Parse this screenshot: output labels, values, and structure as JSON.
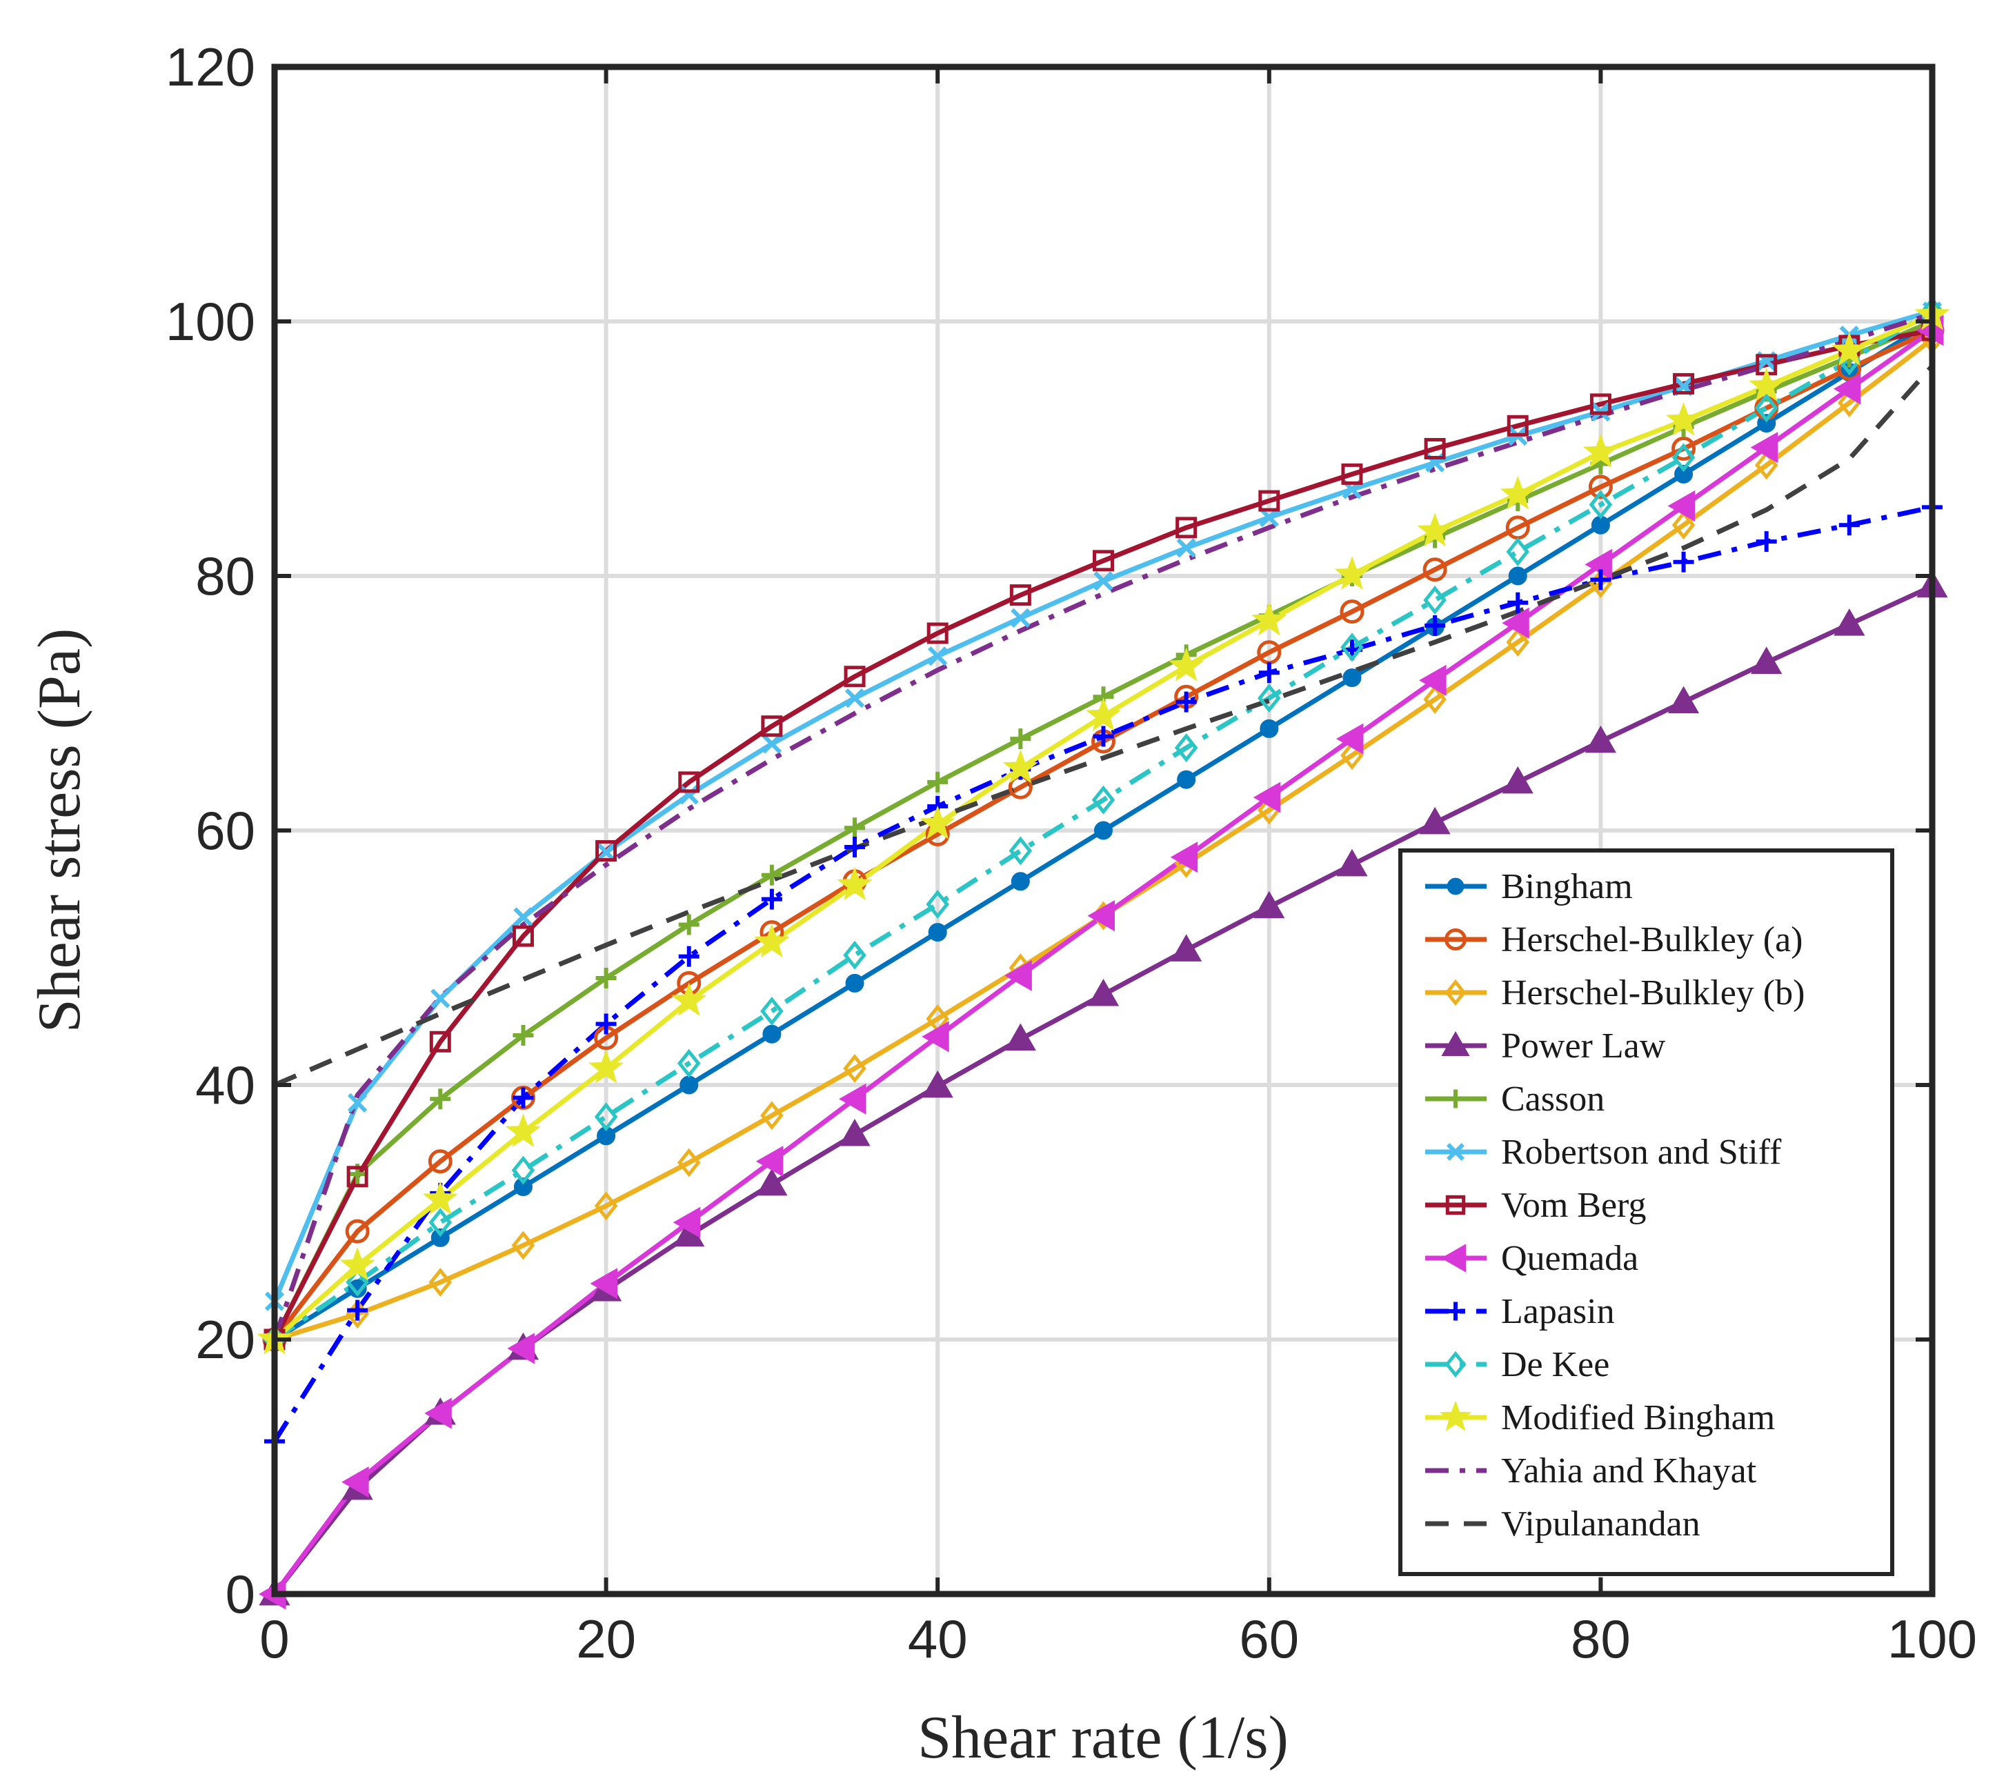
{
  "chart_data": {
    "type": "line",
    "title": "",
    "xlabel": "Shear rate (1/s)",
    "ylabel": "Shear stress (Pa)",
    "xlim": [
      0,
      100
    ],
    "ylim": [
      0,
      120
    ],
    "xticks": [
      0,
      20,
      40,
      60,
      80,
      100
    ],
    "yticks": [
      0,
      20,
      40,
      60,
      80,
      100,
      120
    ],
    "xtick_labels": [
      "0",
      "20",
      "40",
      "60",
      "80",
      "100"
    ],
    "ytick_labels": [
      "0",
      "20",
      "40",
      "60",
      "80",
      "100",
      "120"
    ],
    "grid": true,
    "legend_location": "bottom-right",
    "x": [
      0,
      5,
      10,
      15,
      20,
      25,
      30,
      35,
      40,
      45,
      50,
      55,
      60,
      65,
      70,
      75,
      80,
      85,
      90,
      95,
      100
    ],
    "series": [
      {
        "name": "Bingham",
        "color": "#0072BD",
        "marker": "circle-filled",
        "dash": "solid",
        "values": [
          20,
          24,
          28,
          32,
          36,
          40,
          44,
          48,
          52,
          56,
          60,
          64,
          68,
          72,
          76,
          80,
          84,
          88,
          92,
          96,
          100
        ]
      },
      {
        "name": "Herschel-Bulkley (a)",
        "color": "#D95319",
        "marker": "circle-open",
        "dash": "solid",
        "values": [
          20,
          28.5,
          34,
          39,
          43.7,
          48,
          52,
          56,
          59.7,
          63.4,
          67,
          70.5,
          74,
          77.2,
          80.5,
          83.8,
          87,
          90,
          93.2,
          96.3,
          99.3
        ]
      },
      {
        "name": "Herschel-Bulkley (b)",
        "color": "#EDB120",
        "marker": "diamond-open",
        "dash": "solid",
        "values": [
          20,
          22,
          24.5,
          27.4,
          30.5,
          33.9,
          37.6,
          41.3,
          45.2,
          49.2,
          53.3,
          57.4,
          61.6,
          65.9,
          70.3,
          74.8,
          79.4,
          84,
          88.7,
          93.6,
          98.6
        ]
      },
      {
        "name": "Power Law",
        "color": "#7E2F8E",
        "marker": "triangle-up",
        "dash": "solid",
        "values": [
          0,
          8.3,
          14.2,
          19.3,
          23.9,
          28.2,
          32.2,
          36.1,
          39.9,
          43.6,
          47.1,
          50.6,
          54,
          57.3,
          60.6,
          63.8,
          67,
          70.1,
          73.2,
          76.2,
          79.2
        ]
      },
      {
        "name": "Casson",
        "color": "#77AC30",
        "marker": "plus",
        "dash": "solid",
        "values": [
          20,
          33,
          38.9,
          43.9,
          48.4,
          52.6,
          56.5,
          60.2,
          63.8,
          67.2,
          70.5,
          73.8,
          76.9,
          80,
          83,
          85.9,
          88.8,
          91.7,
          94.5,
          97.2,
          100
        ]
      },
      {
        "name": "Robertson and Stiff",
        "color": "#4DBEEE",
        "marker": "x",
        "dash": "solid",
        "values": [
          23,
          38.6,
          46.8,
          53.2,
          58.3,
          62.8,
          66.8,
          70.4,
          73.7,
          76.7,
          79.6,
          82.2,
          84.6,
          86.8,
          88.9,
          91,
          92.9,
          94.9,
          96.9,
          98.9,
          100.8
        ]
      },
      {
        "name": "Vom Berg",
        "color": "#A2142F",
        "marker": "square-open",
        "dash": "solid",
        "values": [
          20,
          32.8,
          43.4,
          51.7,
          58.4,
          63.8,
          68.2,
          72.1,
          75.5,
          78.5,
          81.2,
          83.8,
          85.9,
          88,
          90,
          91.8,
          93.5,
          95.1,
          96.6,
          98.1,
          99.3
        ]
      },
      {
        "name": "Quemada",
        "color": "#D838D8",
        "marker": "triangle-left",
        "dash": "solid",
        "values": [
          0,
          8.8,
          14.2,
          19.3,
          24.4,
          29.2,
          34,
          38.9,
          43.8,
          48.6,
          53.3,
          57.9,
          62.6,
          67.2,
          71.8,
          76.3,
          80.9,
          85.5,
          90.1,
          94.7,
          99.3
        ]
      },
      {
        "name": "Lapasin",
        "color": "#0000FF",
        "marker": "plus",
        "dash": "dashdot",
        "values": [
          12,
          22.3,
          31.5,
          39,
          44.8,
          50.1,
          54.6,
          58.7,
          61.9,
          64.8,
          67.4,
          70.1,
          72.4,
          74.2,
          76.1,
          77.9,
          79.7,
          81.1,
          82.7,
          84,
          85.4
        ]
      },
      {
        "name": "De Kee",
        "color": "#2CC5C5",
        "marker": "diamond-open",
        "dash": "dashdot",
        "values": [
          20,
          24.5,
          29.2,
          33.3,
          37.5,
          41.7,
          45.8,
          50.2,
          54.2,
          58.4,
          62.4,
          66.5,
          70.4,
          74.4,
          78.1,
          81.9,
          85.6,
          89.3,
          93.2,
          96.9,
          100.8
        ]
      },
      {
        "name": "Modified Bingham",
        "color": "#E8E82A",
        "marker": "star",
        "dash": "solid",
        "values": [
          20,
          25.8,
          31,
          36.3,
          41.3,
          46.6,
          51.2,
          55.7,
          60.5,
          64.9,
          69,
          72.9,
          76.5,
          80.1,
          83.5,
          86.4,
          89.7,
          92.2,
          94.9,
          97.7,
          100.5
        ]
      },
      {
        "name": "Yahia and Khayat",
        "color": "#7E2F8E",
        "marker": "none",
        "dash": "dashdot",
        "values": [
          20,
          39.2,
          46.9,
          52.6,
          57.3,
          61.7,
          65.6,
          69.2,
          72.6,
          75.7,
          78.6,
          81.3,
          83.8,
          86.2,
          88.4,
          90.5,
          92.6,
          94.6,
          96.5,
          98.5,
          100.6
        ]
      },
      {
        "name": "Vipulanandan",
        "color": "#404040",
        "marker": "none",
        "dash": "dashed",
        "values": [
          40,
          42.8,
          45.6,
          48.3,
          51,
          53.6,
          56.1,
          58.6,
          61,
          63.4,
          65.7,
          68,
          70.2,
          72.5,
          74.8,
          77.2,
          79.7,
          82.2,
          85.2,
          89.2,
          96.5
        ]
      }
    ]
  }
}
